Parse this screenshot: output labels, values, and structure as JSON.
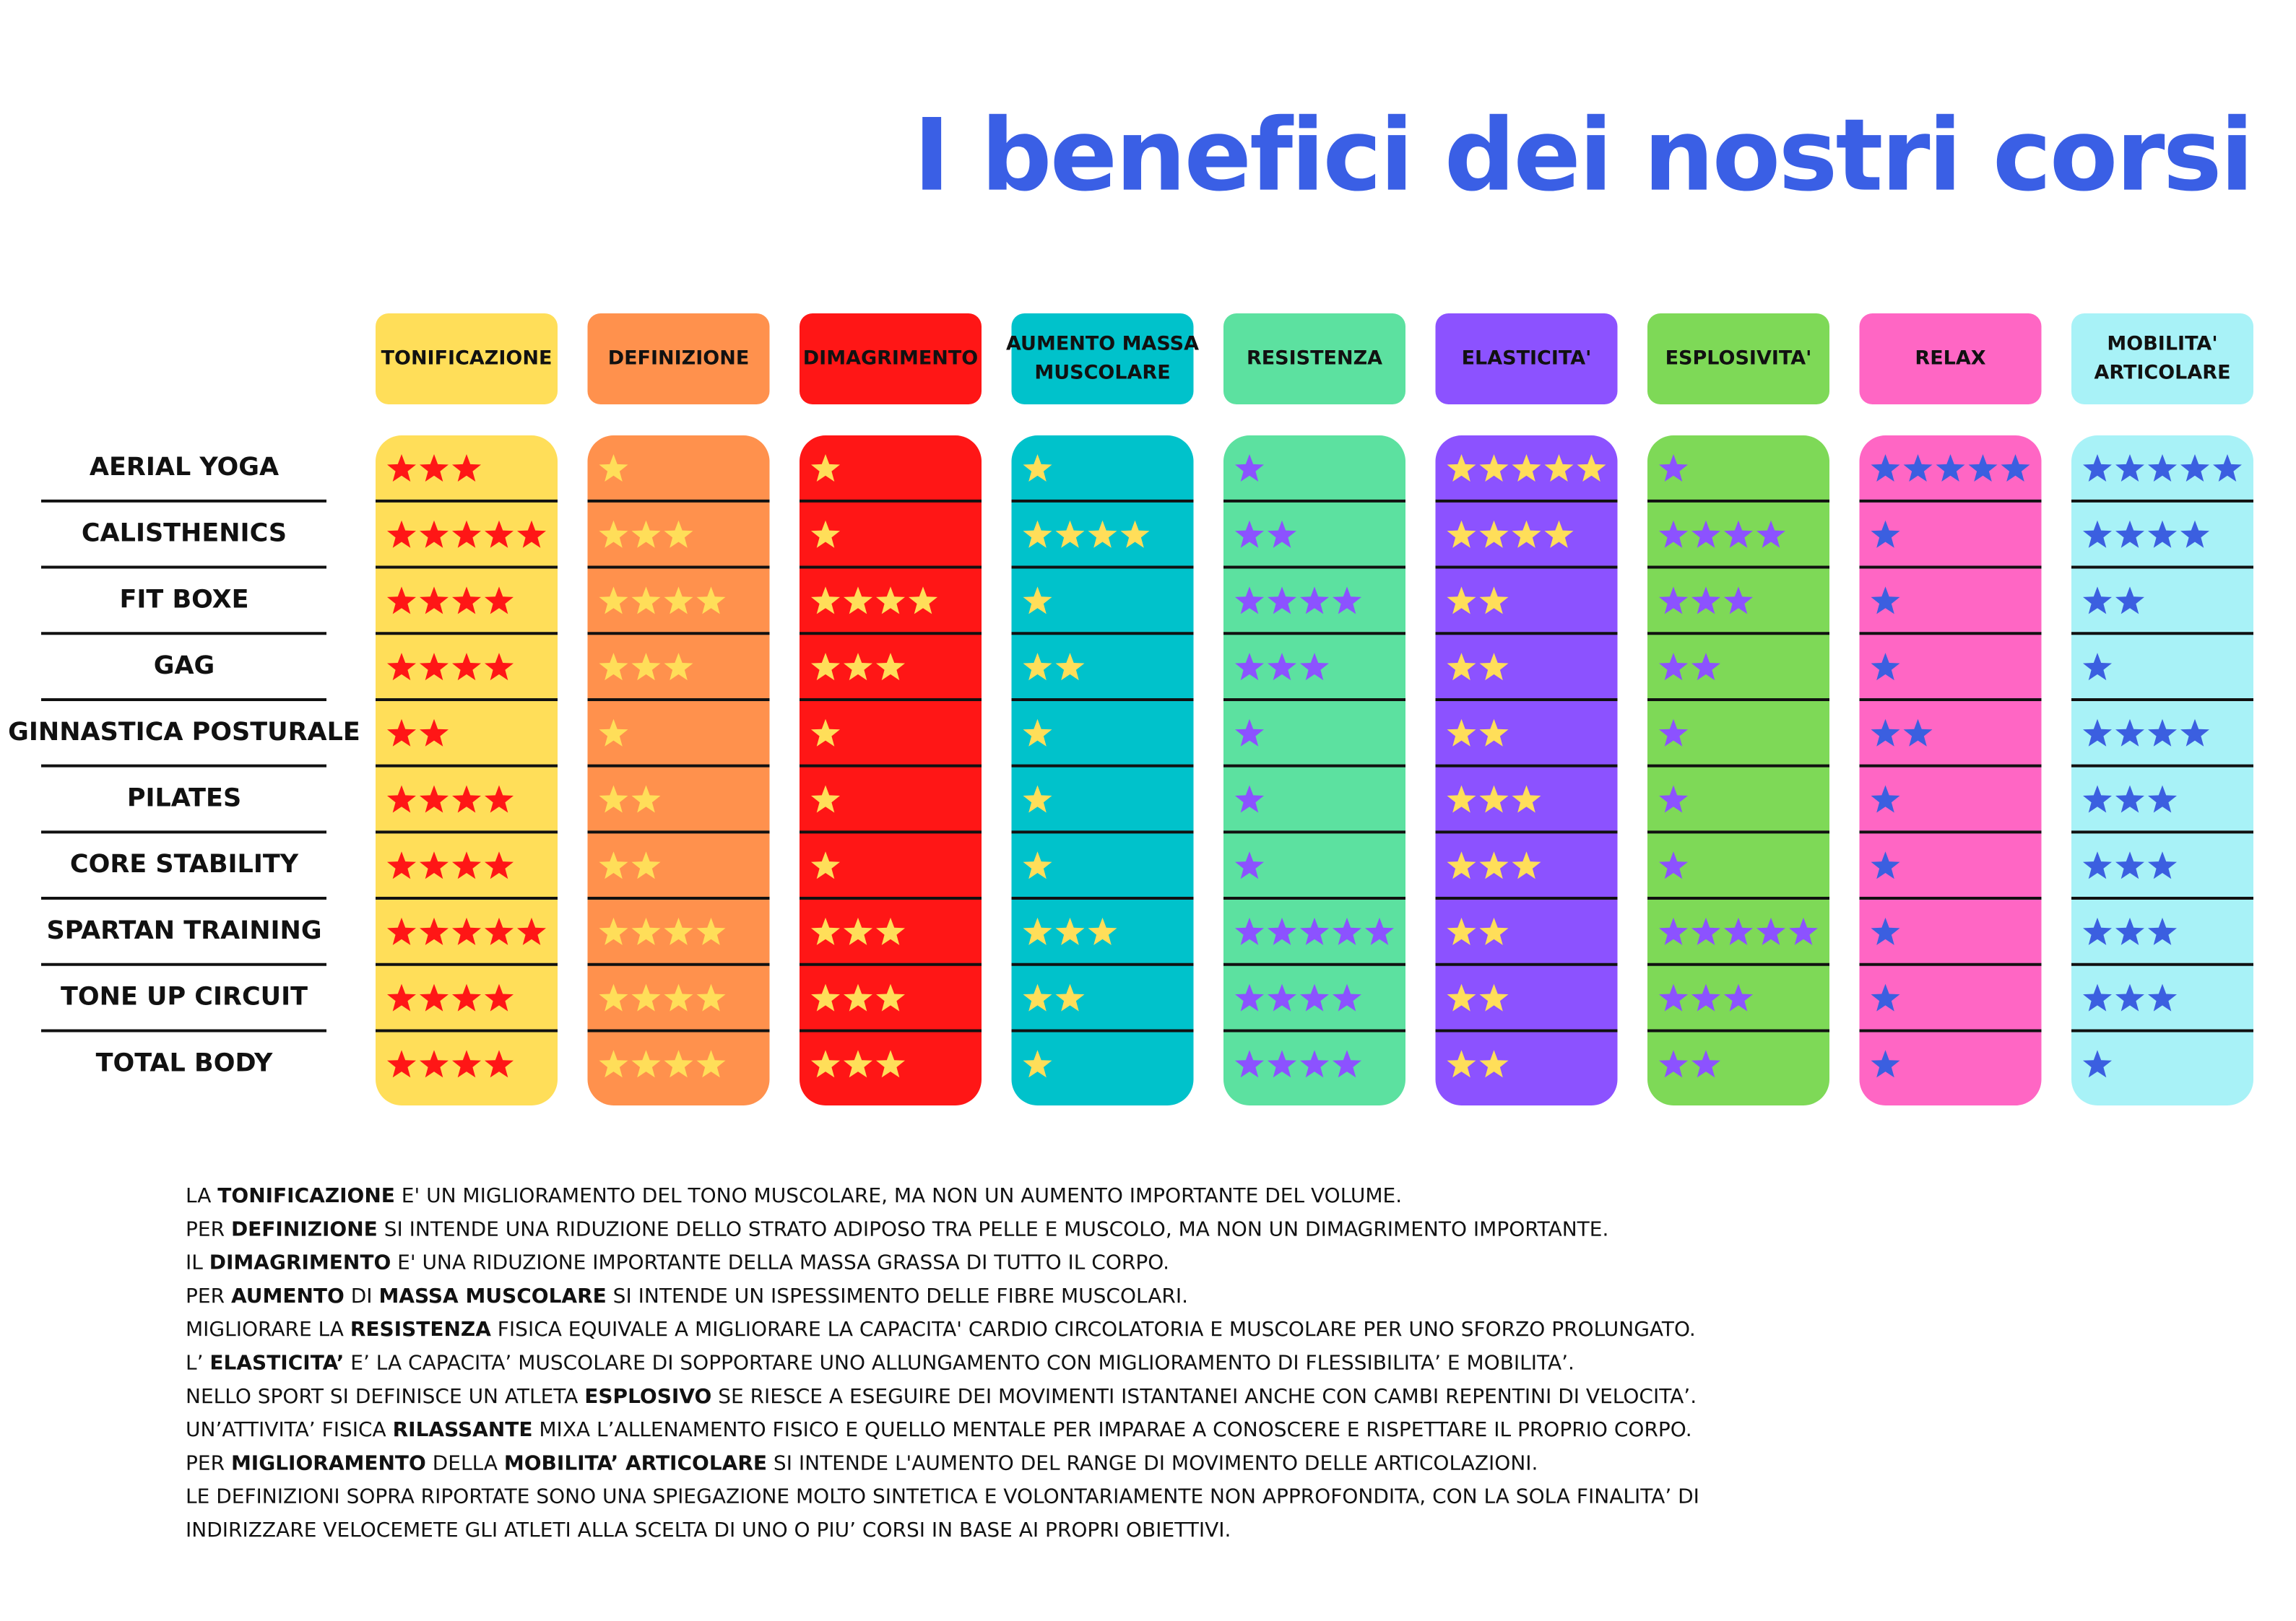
{
  "title": "I benefici dei nostri corsi",
  "columns": [
    {
      "label": [
        "TONIFICAZIONE"
      ],
      "color": "#FFDE59",
      "star_color": "#FF1616"
    },
    {
      "label": [
        "DEFINIZIONE"
      ],
      "color": "#FF914D",
      "star_color": "#FFDE59"
    },
    {
      "label": [
        "DIMAGRIMENTO"
      ],
      "color": "#FF1616",
      "star_color": "#FFDE59"
    },
    {
      "label": [
        "AUMENTO MASSA",
        "MUSCOLARE"
      ],
      "color": "#00C2CB",
      "star_color": "#FFDE59"
    },
    {
      "label": [
        "RESISTENZA"
      ],
      "color": "#5CE1A0",
      "star_color": "#8C52FF"
    },
    {
      "label": [
        "ELASTICITA'"
      ],
      "color": "#8C52FF",
      "star_color": "#FFDE59"
    },
    {
      "label": [
        "ESPLOSIVITA'"
      ],
      "color": "#7ED957",
      "star_color": "#8C52FF"
    },
    {
      "label": [
        "RELAX"
      ],
      "color": "#FF66C4",
      "star_color": "#3B5FE0"
    },
    {
      "label": [
        "MOBILITA'",
        "ARTICOLARE"
      ],
      "color": "#A8F2F7",
      "star_color": "#3B5FE0"
    }
  ],
  "rows": [
    {
      "label": "AERIAL YOGA",
      "ratings": [
        3,
        1,
        1,
        1,
        1,
        5,
        1,
        5,
        5
      ]
    },
    {
      "label": "CALISTHENICS",
      "ratings": [
        5,
        3,
        1,
        4,
        2,
        4,
        4,
        1,
        4
      ]
    },
    {
      "label": "FIT BOXE",
      "ratings": [
        4,
        4,
        4,
        1,
        4,
        2,
        3,
        1,
        2
      ]
    },
    {
      "label": "GAG",
      "ratings": [
        4,
        3,
        3,
        2,
        3,
        2,
        2,
        1,
        1
      ]
    },
    {
      "label": "GINNASTICA POSTURALE",
      "ratings": [
        2,
        1,
        1,
        1,
        1,
        2,
        1,
        2,
        4
      ]
    },
    {
      "label": "PILATES",
      "ratings": [
        4,
        2,
        1,
        1,
        1,
        3,
        1,
        1,
        3
      ]
    },
    {
      "label": "CORE STABILITY",
      "ratings": [
        4,
        2,
        1,
        1,
        1,
        3,
        1,
        1,
        3
      ]
    },
    {
      "label": "SPARTAN TRAINING",
      "ratings": [
        5,
        4,
        3,
        3,
        5,
        2,
        5,
        1,
        3
      ]
    },
    {
      "label": "TONE UP CIRCUIT",
      "ratings": [
        4,
        4,
        3,
        2,
        4,
        2,
        3,
        1,
        3
      ]
    },
    {
      "label": "TOTAL BODY",
      "ratings": [
        4,
        4,
        3,
        1,
        4,
        2,
        2,
        1,
        1
      ]
    }
  ],
  "notes": [
    [
      {
        "text": "LA "
      },
      {
        "text": "TONIFICAZIONE",
        "bold": true
      },
      {
        "text": " E' UN MIGLIORAMENTO DEL TONO MUSCOLARE, MA NON UN AUMENTO IMPORTANTE DEL VOLUME."
      }
    ],
    [
      {
        "text": "PER "
      },
      {
        "text": "DEFINIZIONE",
        "bold": true
      },
      {
        "text": " SI INTENDE UNA RIDUZIONE DELLO STRATO ADIPOSO TRA PELLE E MUSCOLO, MA NON UN DIMAGRIMENTO IMPORTANTE."
      }
    ],
    [
      {
        "text": "IL "
      },
      {
        "text": "DIMAGRIMENTO",
        "bold": true
      },
      {
        "text": " E' UNA RIDUZIONE IMPORTANTE DELLA MASSA GRASSA DI TUTTO IL CORPO."
      }
    ],
    [
      {
        "text": "PER "
      },
      {
        "text": "AUMENTO",
        "bold": true
      },
      {
        "text": " DI "
      },
      {
        "text": "MASSA MUSCOLARE",
        "bold": true
      },
      {
        "text": " SI INTENDE UN ISPESSIMENTO DELLE FIBRE MUSCOLARI."
      }
    ],
    [
      {
        "text": "MIGLIORARE LA "
      },
      {
        "text": "RESISTENZA",
        "bold": true
      },
      {
        "text": " FISICA EQUIVALE A MIGLIORARE LA CAPACITA' CARDIO CIRCOLATORIA E MUSCOLARE PER UNO SFORZO PROLUNGATO."
      }
    ],
    [
      {
        "text": "L’ "
      },
      {
        "text": "ELASTICITA’",
        "bold": true
      },
      {
        "text": " E’ LA CAPACITA’ MUSCOLARE DI SOPPORTARE UNO ALLUNGAMENTO CON MIGLIORAMENTO DI FLESSIBILITA’ E MOBILITA’."
      }
    ],
    [
      {
        "text": "NELLO SPORT SI DEFINISCE UN ATLETA "
      },
      {
        "text": "ESPLOSIVO",
        "bold": true
      },
      {
        "text": " SE RIESCE A ESEGUIRE DEI MOVIMENTI ISTANTANEI ANCHE CON CAMBI REPENTINI DI VELOCITA’."
      }
    ],
    [
      {
        "text": "UN’ATTIVITA’ FISICA "
      },
      {
        "text": "RILASSANTE",
        "bold": true
      },
      {
        "text": " MIXA L’ALLENAMENTO FISICO E QUELLO MENTALE PER IMPARAE A CONOSCERE E RISPETTARE IL PROPRIO CORPO."
      }
    ],
    [
      {
        "text": "PER "
      },
      {
        "text": "MIGLIORAMENTO",
        "bold": true
      },
      {
        "text": " DELLA "
      },
      {
        "text": "MOBILITA’ ARTICOLARE",
        "bold": true
      },
      {
        "text": " SI INTENDE L'AUMENTO DEL RANGE DI MOVIMENTO DELLE ARTICOLAZIONI."
      }
    ],
    [
      {
        "text": "LE DEFINIZIONI SOPRA RIPORTATE SONO UNA SPIEGAZIONE MOLTO SINTETICA E VOLONTARIAMENTE NON APPROFONDITA, CON LA SOLA FINALITA’ DI"
      }
    ],
    [
      {
        "text": "INDIRIZZARE VELOCEMETE GLI ATLETI ALLA SCELTA DI UNO O PIU’ CORSI IN BASE AI PROPRI OBIETTIVI."
      }
    ]
  ]
}
